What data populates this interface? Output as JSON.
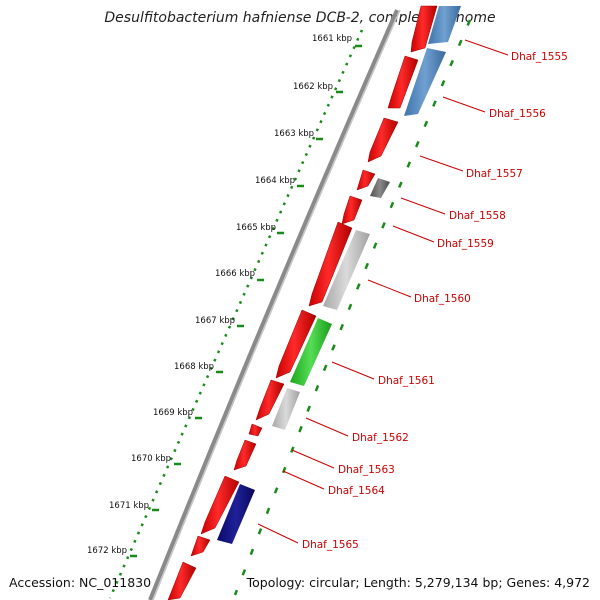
{
  "header": {
    "title": "Desulfitobacterium hafniense DCB-2, complete genome"
  },
  "footer": {
    "accession": "Accession: NC_011830",
    "summary": "Topology: circular; Length: 5,279,134 bp; Genes: 4,972"
  },
  "colors": {
    "forward_cds": "#ff1010",
    "tick_green": "#1a8a1a",
    "label_red": "#cc0000",
    "backbone": "#8a8a8a"
  },
  "ruler": {
    "labels": [
      "1661 kbp",
      "1662 kbp",
      "1663 kbp",
      "1664 kbp",
      "1665 kbp",
      "1666 kbp",
      "1667 kbp",
      "1668 kbp",
      "1669 kbp",
      "1670 kbp",
      "1671 kbp",
      "1672 kbp"
    ]
  },
  "genes": [
    {
      "name": "Dhaf_1555",
      "color": "#5b8fc2"
    },
    {
      "name": "Dhaf_1556",
      "color": "#5b8fc2"
    },
    {
      "name": "Dhaf_1557",
      "color": "#ff1010"
    },
    {
      "name": "Dhaf_1558",
      "color": "#707070"
    },
    {
      "name": "Dhaf_1559",
      "color": "#ff1010"
    },
    {
      "name": "Dhaf_1560",
      "color": "#c8c8c8"
    },
    {
      "name": "Dhaf_1561",
      "color": "#33cc33"
    },
    {
      "name": "Dhaf_1562",
      "color": "#c8c8c8"
    },
    {
      "name": "Dhaf_1563",
      "color": "#ff1010"
    },
    {
      "name": "Dhaf_1564",
      "color": "#ff1010"
    },
    {
      "name": "Dhaf_1565",
      "color": "#101080"
    }
  ]
}
